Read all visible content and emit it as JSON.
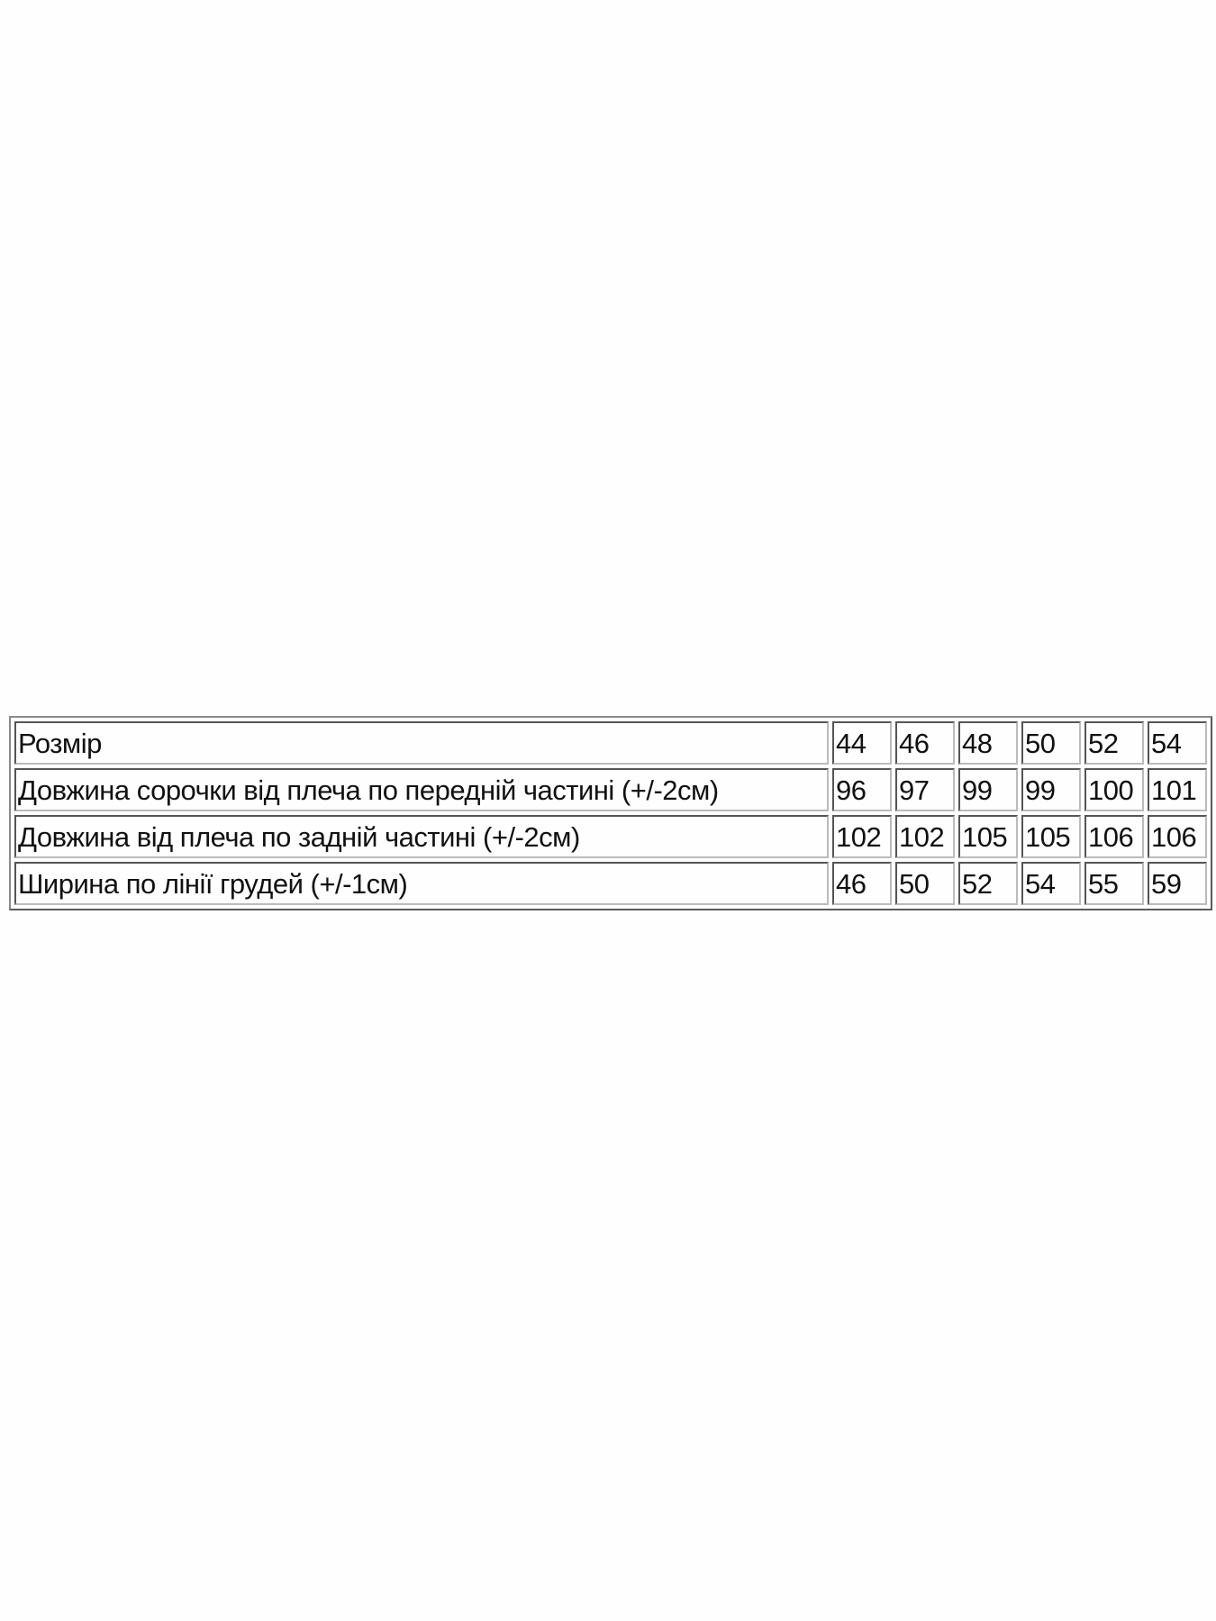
{
  "table": {
    "rows": [
      {
        "label": "Розмір",
        "values": [
          "44",
          "46",
          "48",
          "50",
          "52",
          "54"
        ]
      },
      {
        "label": "Довжина сорочки від плеча по передній частині (+/-2см)",
        "values": [
          "96",
          "97",
          "99",
          "99",
          "100",
          "101"
        ]
      },
      {
        "label": "Довжина від плеча по задній частині (+/-2см)",
        "values": [
          "102",
          "102",
          "105",
          "105",
          "106",
          "106"
        ]
      },
      {
        "label": "Ширина по лінії грудей (+/-1см)",
        "values": [
          "46",
          "50",
          "52",
          "54",
          "55",
          "59"
        ]
      }
    ]
  }
}
